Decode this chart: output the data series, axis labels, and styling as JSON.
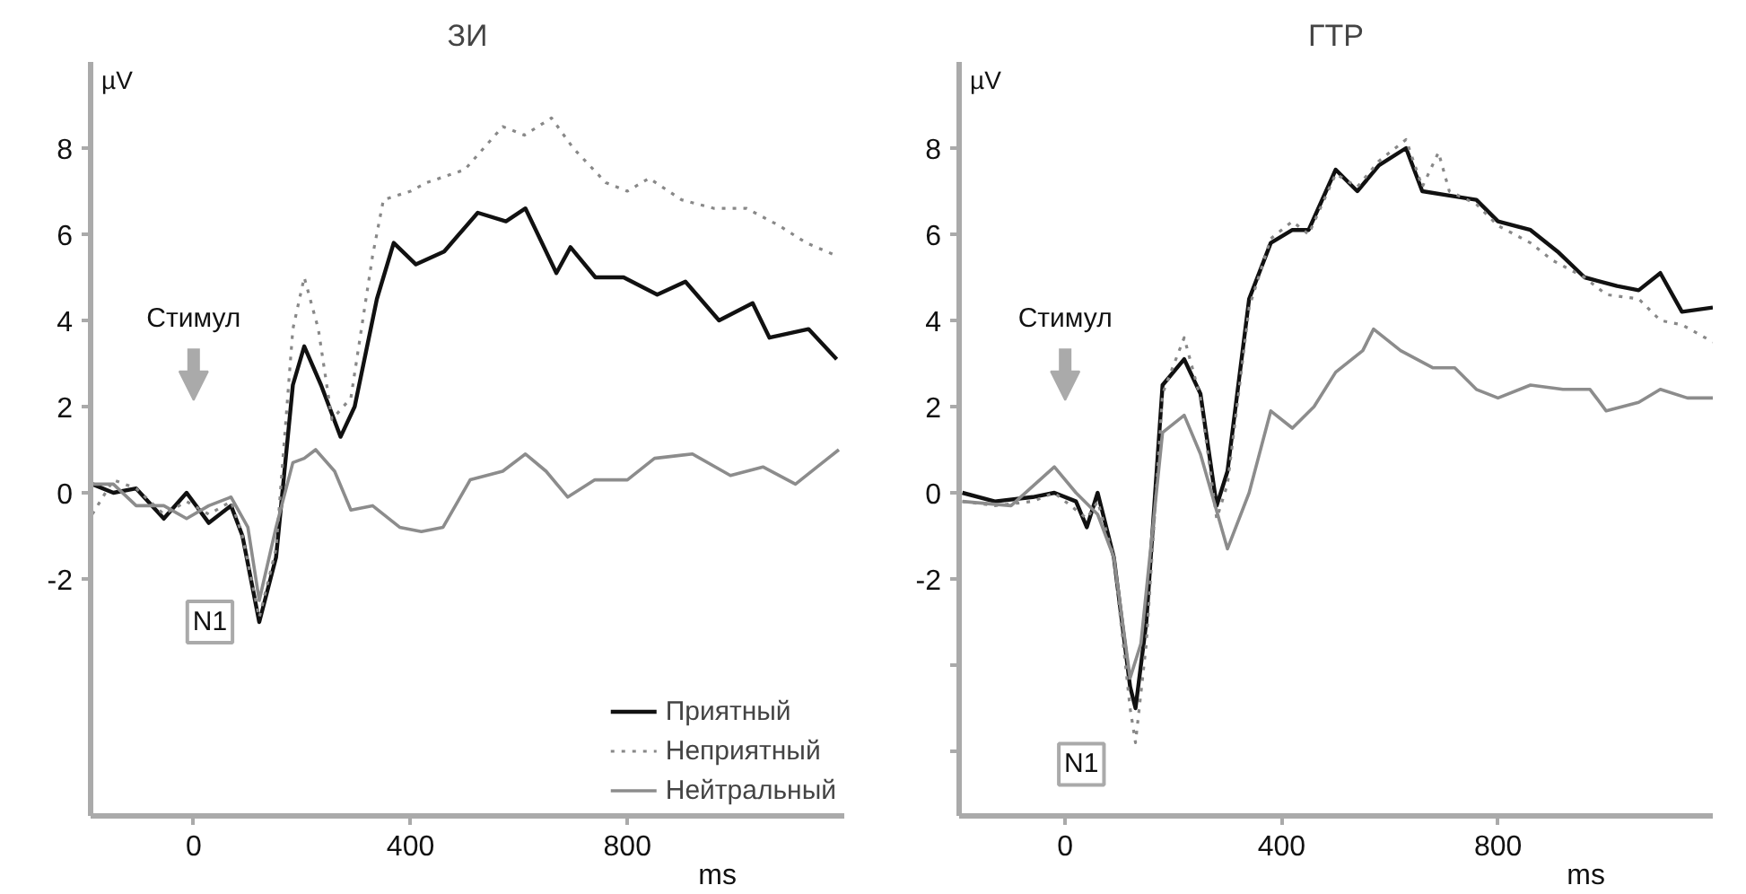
{
  "chart_data": [
    {
      "type": "line",
      "title": "ЗИ",
      "ylabel": "µV",
      "xlabel": "ms",
      "xlim": [
        -190,
        1200
      ],
      "ylim": [
        -7.5,
        10
      ],
      "xticks": [
        0,
        400,
        800
      ],
      "yticks": [
        -2,
        0,
        2,
        4,
        6,
        8
      ],
      "grid": false,
      "legend": "bottom right",
      "annotations": [
        "Стимул",
        {
          "text": "N1",
          "x": 30,
          "y": -3
        }
      ],
      "series": [
        {
          "name": "Приятный",
          "color": "#111111",
          "line_style": "solid",
          "x": [
            -187,
            -148,
            -106,
            -55,
            -13,
            28,
            69,
            90,
            121,
            152,
            183,
            204,
            235,
            271,
            297,
            338,
            369,
            410,
            462,
            524,
            576,
            612,
            669,
            695,
            741,
            793,
            855,
            907,
            969,
            1031,
            1062,
            1134,
            1186
          ],
          "values": [
            0.2,
            0,
            0.1,
            -0.6,
            0,
            -0.7,
            -0.3,
            -1,
            -3.0,
            -1.5,
            2.5,
            3.4,
            2.5,
            1.3,
            2,
            4.5,
            5.8,
            5.3,
            5.6,
            6.5,
            6.3,
            6.6,
            5.1,
            5.7,
            5.0,
            5.0,
            4.6,
            4.9,
            4.0,
            4.4,
            3.6,
            3.8,
            3.1
          ]
        },
        {
          "name": "Неприятный",
          "color": "#888888",
          "line_style": "dotted",
          "x": [
            -187,
            -148,
            -106,
            -55,
            -13,
            28,
            69,
            90,
            121,
            152,
            183,
            204,
            230,
            255,
            290,
            330,
            350,
            400,
            430,
            500,
            570,
            610,
            660,
            700,
            760,
            800,
            840,
            900,
            960,
            1020,
            1080,
            1130,
            1186
          ],
          "values": [
            -0.5,
            0.3,
            0.1,
            -0.5,
            -0.2,
            -0.5,
            -0.2,
            -1,
            -2.9,
            -1.3,
            3.8,
            5.0,
            3.8,
            1.7,
            2.2,
            5.5,
            6.8,
            7.0,
            7.2,
            7.5,
            8.5,
            8.3,
            8.7,
            8.0,
            7.2,
            7.0,
            7.3,
            6.8,
            6.6,
            6.6,
            6.2,
            5.8,
            5.5
          ]
        },
        {
          "name": "Нейтральный",
          "color": "#8c8c8c",
          "line_style": "solid",
          "x": [
            -187,
            -148,
            -106,
            -55,
            -13,
            28,
            69,
            100,
            121,
            152,
            183,
            204,
            225,
            260,
            290,
            330,
            380,
            420,
            460,
            510,
            570,
            612,
            650,
            690,
            740,
            800,
            850,
            920,
            990,
            1050,
            1110,
            1150,
            1190
          ],
          "values": [
            0.2,
            0.2,
            -0.3,
            -0.3,
            -0.6,
            -0.3,
            -0.1,
            -0.8,
            -2.5,
            -0.8,
            0.7,
            0.8,
            1.0,
            0.5,
            -0.4,
            -0.3,
            -0.8,
            -0.9,
            -0.8,
            0.3,
            0.5,
            0.9,
            0.5,
            -0.1,
            0.3,
            0.3,
            0.8,
            0.9,
            0.4,
            0.6,
            0.2,
            0.6,
            1.0
          ]
        }
      ]
    },
    {
      "type": "line",
      "title": "ГТР",
      "ylabel": "µV",
      "xlabel": "ms",
      "xlim": [
        -196,
        1197
      ],
      "ylim": [
        -7.5,
        10
      ],
      "xticks": [
        0,
        400,
        800
      ],
      "yticks": [
        {
          "value": -6,
          "label": null
        },
        {
          "value": -4,
          "label": null
        },
        -2,
        0,
        2,
        4,
        6,
        8
      ],
      "grid": false,
      "annotations": [
        "Стимул",
        {
          "text": "N1",
          "x": 30,
          "y": -6.3
        }
      ],
      "series": [
        {
          "color": "#111111",
          "line_style": "solid",
          "x": [
            -190,
            -130,
            -60,
            -20,
            20,
            40,
            60,
            90,
            120,
            130,
            150,
            180,
            220,
            250,
            280,
            300,
            340,
            380,
            420,
            450,
            500,
            540,
            580,
            630,
            660,
            710,
            760,
            800,
            860,
            910,
            960,
            1020,
            1060,
            1100,
            1140,
            1197
          ],
          "values": [
            0,
            -0.2,
            -0.1,
            0,
            -0.2,
            -0.8,
            0,
            -1.5,
            -4.5,
            -5.0,
            -3.0,
            2.5,
            3.1,
            2.3,
            -0.3,
            0.5,
            4.5,
            5.8,
            6.1,
            6.1,
            7.5,
            7.0,
            7.6,
            8.0,
            7.0,
            6.9,
            6.8,
            6.3,
            6.1,
            5.6,
            5.0,
            4.8,
            4.7,
            5.1,
            4.2,
            4.3
          ]
        },
        {
          "color": "#888888",
          "line_style": "dotted",
          "x": [
            -190,
            -130,
            -60,
            -20,
            20,
            40,
            60,
            90,
            120,
            130,
            150,
            180,
            220,
            250,
            280,
            300,
            340,
            380,
            420,
            450,
            500,
            540,
            580,
            630,
            660,
            690,
            710,
            760,
            800,
            860,
            900,
            960,
            1000,
            1060,
            1100,
            1140,
            1197
          ],
          "values": [
            -0.2,
            -0.3,
            -0.2,
            0,
            -0.4,
            -0.6,
            -0.2,
            -1.5,
            -5.0,
            -5.8,
            -3.5,
            2.3,
            3.6,
            2.2,
            -0.6,
            0.2,
            4.3,
            5.9,
            6.3,
            6.0,
            7.4,
            7.1,
            7.7,
            8.2,
            7.1,
            7.9,
            7.0,
            6.7,
            6.2,
            5.8,
            5.4,
            5.0,
            4.6,
            4.5,
            4.0,
            3.9,
            3.5
          ]
        },
        {
          "color": "#8c8c8c",
          "line_style": "solid",
          "x": [
            -190,
            -100,
            -20,
            20,
            60,
            90,
            120,
            140,
            180,
            220,
            250,
            300,
            340,
            380,
            420,
            460,
            500,
            550,
            570,
            620,
            680,
            720,
            760,
            800,
            860,
            920,
            970,
            1000,
            1060,
            1100,
            1150,
            1197
          ],
          "values": [
            -0.2,
            -0.3,
            0.6,
            0,
            -0.5,
            -1.5,
            -4.3,
            -3.5,
            1.4,
            1.8,
            0.9,
            -1.3,
            0,
            1.9,
            1.5,
            2.0,
            2.8,
            3.3,
            3.8,
            3.3,
            2.9,
            2.9,
            2.4,
            2.2,
            2.5,
            2.4,
            2.4,
            1.9,
            2.1,
            2.4,
            2.2,
            2.2
          ]
        }
      ]
    }
  ]
}
